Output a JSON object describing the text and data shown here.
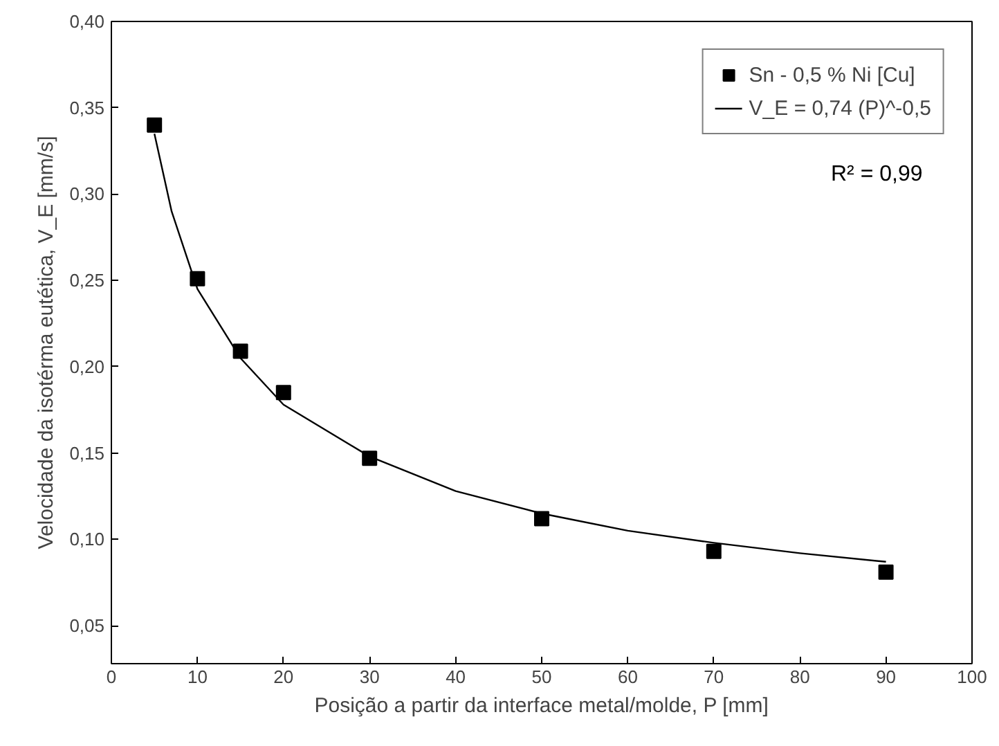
{
  "chart_data": {
    "type": "scatter",
    "xlabel": "Posição a partir da interface metal/molde, P [mm]",
    "ylabel": "Velocidade da isotérma eutética, V_E [mm/s]",
    "xlim": [
      0,
      100
    ],
    "ylim": [
      0.028,
      0.4
    ],
    "xticks": [
      0,
      10,
      20,
      30,
      40,
      50,
      60,
      70,
      80,
      90,
      100
    ],
    "yticks": [
      {
        "value": 0.05,
        "label": "0,05"
      },
      {
        "value": 0.1,
        "label": "0,10"
      },
      {
        "value": 0.15,
        "label": "0,15"
      },
      {
        "value": 0.2,
        "label": "0,20"
      },
      {
        "value": 0.25,
        "label": "0,25"
      },
      {
        "value": 0.3,
        "label": "0,30"
      },
      {
        "value": 0.35,
        "label": "0,35"
      },
      {
        "value": 0.4,
        "label": "0,40"
      }
    ],
    "grid": false,
    "legend": "top right",
    "annotations": [
      "R² = 0,99"
    ],
    "series": [
      {
        "name": "Sn - 0,5 % Ni [Cu]",
        "marker": "square",
        "color": "#000000",
        "x": [
          5,
          10,
          15,
          20,
          30,
          50,
          70,
          90
        ],
        "values": [
          0.34,
          0.251,
          0.209,
          0.185,
          0.147,
          0.112,
          0.093,
          0.081
        ]
      },
      {
        "name": "V_E = 0,74 (P)^-0,5",
        "type": "line",
        "color": "#000000",
        "x": [
          5,
          7,
          10,
          15,
          20,
          30,
          40,
          50,
          60,
          70,
          80,
          90
        ],
        "values": [
          0.335,
          0.29,
          0.245,
          0.205,
          0.178,
          0.148,
          0.128,
          0.115,
          0.105,
          0.098,
          0.092,
          0.087
        ]
      }
    ]
  }
}
